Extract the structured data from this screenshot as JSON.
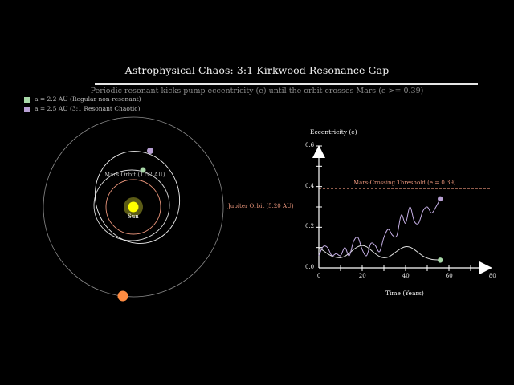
{
  "header": {
    "title": "Astrophysical Chaos: 3:1 Kirkwood Resonance Gap",
    "subtitle": "Periodic resonant kicks pump eccentricity (e) until the orbit crosses Mars (e >= 0.39)"
  },
  "legend": {
    "items": [
      {
        "label": "a = 2.2 AU (Regular non-resonant)",
        "color": "#a8d8a8"
      },
      {
        "label": "a = 2.5 AU (3:1 Resonant Chaotic)",
        "color": "#b79fd3"
      }
    ]
  },
  "orbit_diagram": {
    "sun_label": "Sun",
    "mars_label": "Mars Orbit (1.52 AU)",
    "jupiter_label": "Jupiter Orbit (5.20 AU)",
    "colors": {
      "sun": "#ffff00",
      "sun_glow": "#6b6b1a",
      "mars_orbit": "#e8947a",
      "jupiter_orbit": "#8c8c8c",
      "jupiter": "#ff8c42",
      "regular_orbit": "#d9d9d9",
      "chaotic_orbit": "#f0f0f0",
      "mars_label": "#bdbdbd",
      "jupiter_label": "#e8947a"
    }
  },
  "chart_data": {
    "type": "line",
    "xlabel": "Time (Years)",
    "ylabel": "Eccentricity (e)",
    "xlim": [
      0,
      80
    ],
    "ylim": [
      0,
      0.6
    ],
    "xticks": [
      0,
      20,
      40,
      60,
      80
    ],
    "yticks": [
      0.0,
      0.2,
      0.4,
      0.6
    ],
    "xtick_labels": [
      "0",
      "20",
      "40",
      "60",
      "80"
    ],
    "ytick_labels": [
      "0.0",
      "0.2",
      "0.4",
      "0.6"
    ],
    "threshold": {
      "value": 0.39,
      "label": "Mars-Crossing Threshold (e = 0.39)",
      "color": "#e8947a"
    },
    "series": [
      {
        "color": "#e0e0e0",
        "x": [
          0,
          2,
          4,
          6,
          8,
          10,
          12,
          14,
          16,
          18,
          20,
          22,
          24,
          26,
          28,
          30,
          32,
          34,
          36,
          38,
          40,
          42,
          44,
          46,
          48,
          50,
          52,
          54,
          56
        ],
        "y": [
          0.1,
          0.085,
          0.07,
          0.058,
          0.052,
          0.05,
          0.057,
          0.072,
          0.09,
          0.104,
          0.11,
          0.104,
          0.088,
          0.07,
          0.056,
          0.05,
          0.053,
          0.066,
          0.082,
          0.096,
          0.104,
          0.102,
          0.09,
          0.074,
          0.058,
          0.048,
          0.042,
          0.04,
          0.038
        ],
        "end_marker_color": "#a8d8a8"
      },
      {
        "color": "#c6b0e6",
        "x": [
          0,
          2,
          4,
          6,
          8,
          10,
          12,
          14,
          16,
          18,
          20,
          22,
          24,
          26,
          28,
          30,
          32,
          34,
          36,
          38,
          40,
          42,
          44,
          46,
          48,
          50,
          52,
          54,
          56
        ],
        "y": [
          0.06,
          0.105,
          0.1,
          0.06,
          0.07,
          0.06,
          0.1,
          0.06,
          0.13,
          0.15,
          0.09,
          0.06,
          0.12,
          0.11,
          0.08,
          0.15,
          0.19,
          0.16,
          0.16,
          0.26,
          0.22,
          0.3,
          0.23,
          0.22,
          0.28,
          0.3,
          0.27,
          0.3,
          0.34
        ],
        "end_marker_color": "#b79fd3"
      }
    ]
  }
}
